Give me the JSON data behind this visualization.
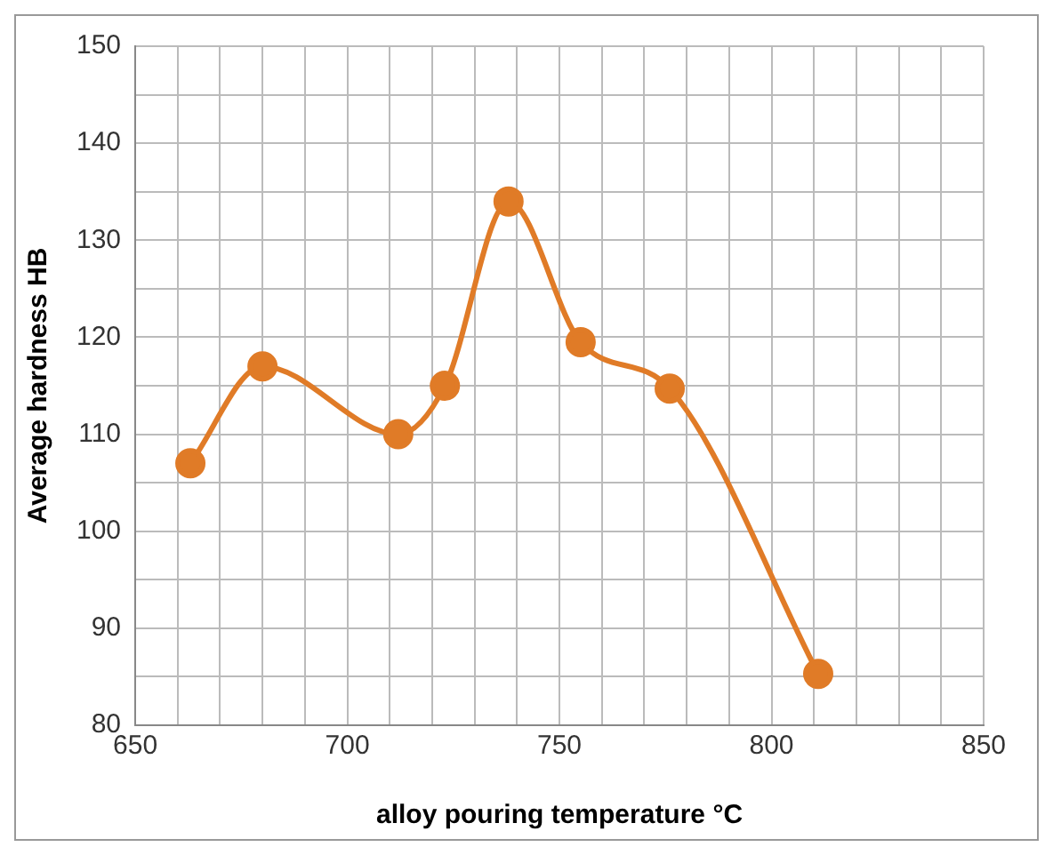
{
  "chart_data": {
    "type": "line",
    "xlabel": "alloy pouring temperature °C",
    "ylabel": "Average hardness HB",
    "x": [
      663,
      680,
      712,
      723,
      738,
      755,
      776,
      811
    ],
    "series": [
      {
        "color": "#e07b27",
        "values": [
          107,
          117,
          110,
          115,
          134,
          119.5,
          114.7,
          85.3
        ]
      }
    ],
    "xlim": [
      650,
      850
    ],
    "xticks": [
      650,
      {
        "value": 660,
        "label": null
      },
      {
        "value": 670,
        "label": null
      },
      {
        "value": 680,
        "label": null
      },
      {
        "value": 690,
        "label": null
      },
      700,
      {
        "value": 710,
        "label": null
      },
      {
        "value": 720,
        "label": null
      },
      {
        "value": 730,
        "label": null
      },
      {
        "value": 740,
        "label": null
      },
      750,
      {
        "value": 760,
        "label": null
      },
      {
        "value": 770,
        "label": null
      },
      {
        "value": 780,
        "label": null
      },
      {
        "value": 790,
        "label": null
      },
      800,
      {
        "value": 810,
        "label": null
      },
      {
        "value": 820,
        "label": null
      },
      {
        "value": 830,
        "label": null
      },
      {
        "value": 840,
        "label": null
      },
      850
    ],
    "ylim": [
      80,
      150
    ],
    "yticks": [
      80,
      {
        "value": 85,
        "label": null
      },
      90,
      {
        "value": 95,
        "label": null
      },
      100,
      {
        "value": 105,
        "label": null
      },
      110,
      {
        "value": 115,
        "label": null
      },
      120,
      {
        "value": 125,
        "label": null
      },
      130,
      {
        "value": 135,
        "label": null
      },
      140,
      {
        "value": 145,
        "label": null
      },
      150
    ],
    "grid": true,
    "legend": false,
    "marker": "circle",
    "line_style": "solid"
  }
}
